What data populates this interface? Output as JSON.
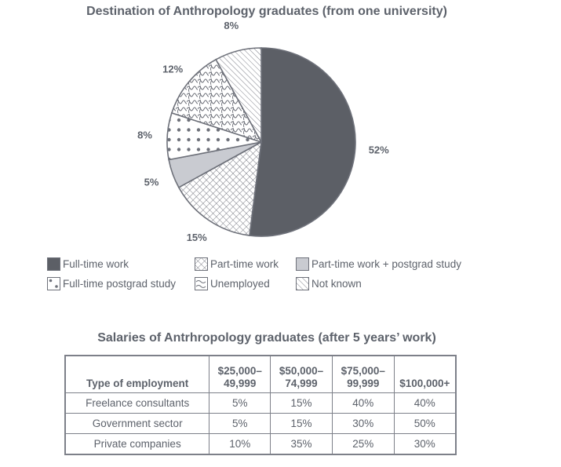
{
  "pie": {
    "title": "Destination of Anthropology graduates (from one university)",
    "slices": [
      {
        "label": "Full-time work",
        "value": 52,
        "display": "52%",
        "pattern": "solid-dark"
      },
      {
        "label": "Part-time work",
        "value": 15,
        "display": "15%",
        "pattern": "crosshatch"
      },
      {
        "label": "Part-time work + postgrad study",
        "value": 5,
        "display": "5%",
        "pattern": "solid-light"
      },
      {
        "label": "Full-time postgrad study",
        "value": 8,
        "display": "8%",
        "pattern": "dots"
      },
      {
        "label": "Unemployed",
        "value": 12,
        "display": "12%",
        "pattern": "squiggle"
      },
      {
        "label": "Not known",
        "value": 8,
        "display": "8%",
        "pattern": "diagonal"
      }
    ]
  },
  "legend": {
    "items": [
      "Full-time work",
      "Part-time work",
      "Part-time work + postgrad study",
      "Full-time postgrad study",
      "Unemployed",
      "Not known"
    ]
  },
  "table": {
    "title": "Salaries of Antrhropology graduates (after 5 years’ work)",
    "headers": [
      "Type of employment",
      "$25,000–\n49,999",
      "$50,000–\n74,999",
      "$75,000–\n99,999",
      "$100,000+"
    ],
    "header_lines": [
      [
        "Type of employment"
      ],
      [
        "$25,000–",
        "49,999"
      ],
      [
        "$50,000–",
        "74,999"
      ],
      [
        "$75,000–",
        "99,999"
      ],
      [
        "$100,000+"
      ]
    ],
    "rows": [
      [
        "Freelance consultants",
        "5%",
        "15%",
        "40%",
        "40%"
      ],
      [
        "Government sector",
        "5%",
        "15%",
        "30%",
        "50%"
      ],
      [
        "Private companies",
        "10%",
        "35%",
        "25%",
        "30%"
      ]
    ]
  },
  "colors": {
    "dark": "#5c5f66",
    "light": "#c9cbd1",
    "line": "#6e717a",
    "text": "#5d626b"
  },
  "chart_data": [
    {
      "type": "pie",
      "title": "Destination of Anthropology graduates (from one university)",
      "categories": [
        "Full-time work",
        "Part-time work",
        "Part-time work + postgrad study",
        "Full-time postgrad study",
        "Unemployed",
        "Not known"
      ],
      "values": [
        52,
        15,
        5,
        8,
        12,
        8
      ],
      "unit": "%",
      "legend_position": "bottom"
    },
    {
      "type": "table",
      "title": "Salaries of Antrhropology graduates (after 5 years’ work)",
      "columns": [
        "Type of employment",
        "$25,000–49,999",
        "$50,000–74,999",
        "$75,000–99,999",
        "$100,000+"
      ],
      "rows": [
        [
          "Freelance consultants",
          "5%",
          "15%",
          "40%",
          "40%"
        ],
        [
          "Government sector",
          "5%",
          "15%",
          "30%",
          "50%"
        ],
        [
          "Private companies",
          "10%",
          "35%",
          "25%",
          "30%"
        ]
      ]
    }
  ]
}
